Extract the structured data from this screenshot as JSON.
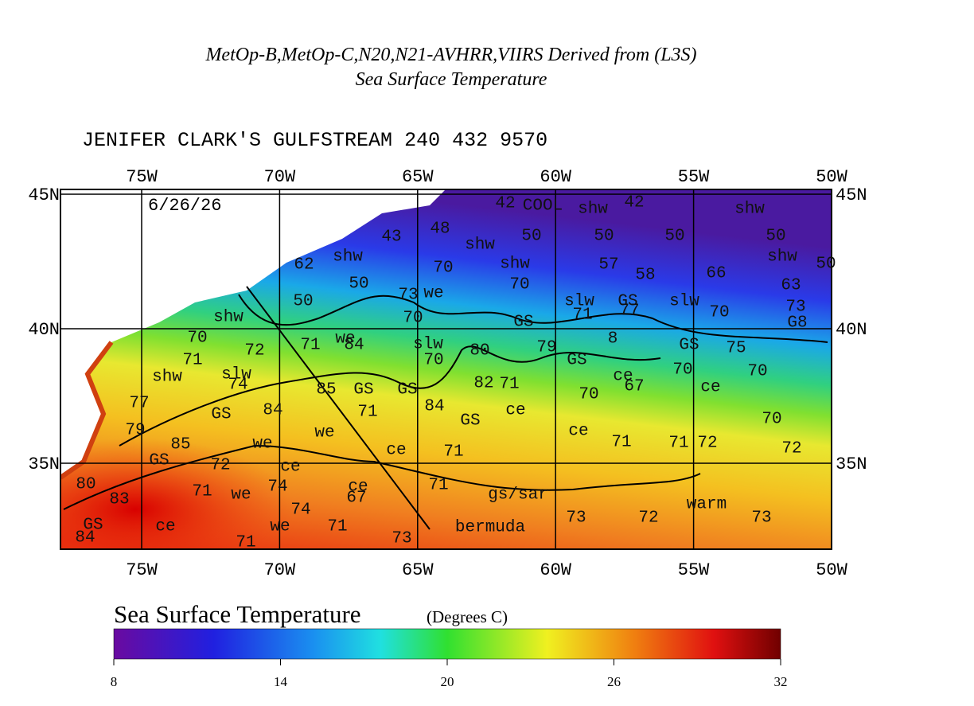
{
  "title": {
    "line1": "MetOp-B,MetOp-C,N20,N21-AVHRR,VIIRS Derived from (L3S)",
    "line2": "Sea Surface Temperature"
  },
  "header": "JENIFER CLARK'S GULFSTREAM 240 432 9570",
  "map": {
    "date": "6/26/26",
    "lon_ticks": [
      {
        "value": -75,
        "label": "75W"
      },
      {
        "value": -70,
        "label": "70W"
      },
      {
        "value": -65,
        "label": "65W"
      },
      {
        "value": -60,
        "label": "60W"
      },
      {
        "value": -55,
        "label": "55W"
      },
      {
        "value": -50,
        "label": "50W"
      }
    ],
    "lat_ticks": [
      {
        "value": 45,
        "label": "45N"
      },
      {
        "value": 40,
        "label": "40N"
      },
      {
        "value": 35,
        "label": "35N"
      }
    ],
    "annotations": [
      "42",
      "COOL",
      "shw",
      "42",
      "shw",
      "43",
      "48",
      "shw",
      "50",
      "50",
      "50",
      "50",
      "62",
      "shw",
      "shw",
      "57",
      "58",
      "66",
      "shw",
      "50",
      "50",
      "70",
      "70",
      "we",
      "73",
      "63",
      "50",
      "slw",
      "GS",
      "slw",
      "70",
      "73",
      "shw",
      "70",
      "GS",
      "71",
      "77",
      "G8",
      "70",
      "72",
      "71",
      "we",
      "84",
      "slw",
      "80",
      "79",
      "8",
      "GS",
      "75",
      "71",
      "70",
      "GS",
      "70",
      "70",
      "shw",
      "slw",
      "82",
      "71",
      "ce",
      "67",
      "ce",
      "74",
      "85",
      "GS",
      "GS",
      "70",
      "77",
      "GS",
      "84",
      "71",
      "84",
      "ce",
      "70",
      "GS",
      "79",
      "we",
      "ce",
      "85",
      "we",
      "71",
      "71",
      "72",
      "72",
      "ce",
      "71",
      "GS",
      "72",
      "ce",
      "80",
      "71",
      "gs/sar",
      "71",
      "we",
      "74",
      "ce",
      "67",
      "warm",
      "83",
      "74",
      "73",
      "72",
      "73",
      "GS",
      "ce",
      "we",
      "71",
      "73",
      "bermuda",
      "84",
      "71"
    ]
  },
  "colorbar": {
    "title": "Sea Surface Temperature",
    "units": "(Degrees C)",
    "range": [
      8,
      32
    ],
    "ticks": [
      8,
      14,
      20,
      26,
      32
    ]
  }
}
